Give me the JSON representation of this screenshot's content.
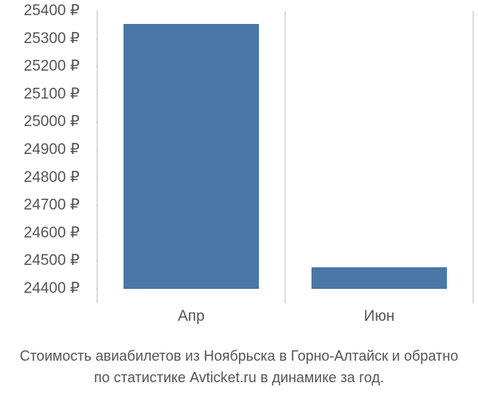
{
  "chart_data": {
    "type": "bar",
    "title": [
      "Стоимость авиабилетов из Ноябрьска в Горно-Алтайск и обратно",
      "по статистике Avticket.ru в динамике за год."
    ],
    "categories": [
      "Апр",
      "Июн"
    ],
    "values": [
      25354,
      24478
    ],
    "color": "#4a76a8",
    "ylim": [
      24400,
      25400
    ],
    "yticks": [
      {
        "value": 24400,
        "label": "24400 ₽"
      },
      {
        "value": 24500,
        "label": "24500 ₽"
      },
      {
        "value": 24600,
        "label": "24600 ₽"
      },
      {
        "value": 24700,
        "label": "24700 ₽"
      },
      {
        "value": 24800,
        "label": "24800 ₽"
      },
      {
        "value": 24900,
        "label": "24900 ₽"
      },
      {
        "value": 25000,
        "label": "25000 ₽"
      },
      {
        "value": 25100,
        "label": "25100 ₽"
      },
      {
        "value": 25200,
        "label": "25200 ₽"
      },
      {
        "value": 25300,
        "label": "25300 ₽"
      },
      {
        "value": 25400,
        "label": "25400 ₽"
      }
    ]
  }
}
